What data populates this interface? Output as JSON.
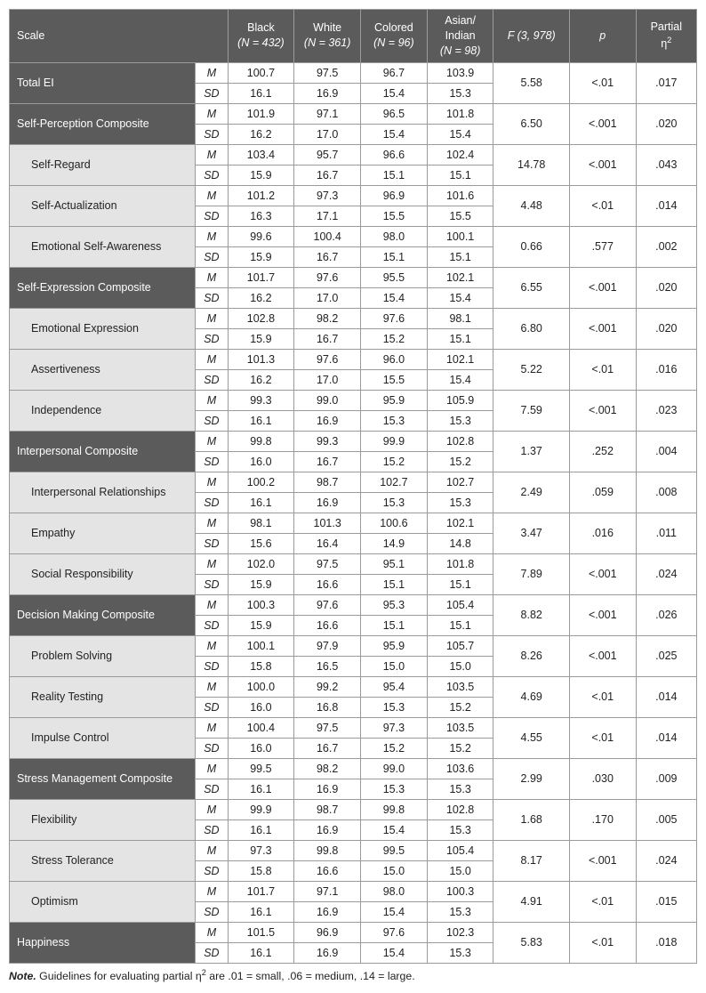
{
  "header": {
    "scale": "Scale",
    "black": "Black",
    "black_n": "(N = 432)",
    "white": "White",
    "white_n": "(N = 361)",
    "colored": "Colored",
    "colored_n": "(N = 96)",
    "asian": "Asian/\nIndian",
    "asian_n": "(N = 98)",
    "F": "F (3, 978)",
    "p": "p",
    "eta": "Partial η²"
  },
  "stat_labels": {
    "M": "M",
    "SD": "SD"
  },
  "rows": [
    {
      "type": "composite",
      "indent": false,
      "label": "Total EI",
      "M": [
        "100.7",
        "97.5",
        "96.7",
        "103.9"
      ],
      "SD": [
        "16.1",
        "16.9",
        "15.4",
        "15.3"
      ],
      "F": "5.58",
      "p": "<.01",
      "eta": ".017"
    },
    {
      "type": "composite",
      "indent": false,
      "label": "Self-Perception Composite",
      "M": [
        "101.9",
        "97.1",
        "96.5",
        "101.8"
      ],
      "SD": [
        "16.2",
        "17.0",
        "15.4",
        "15.4"
      ],
      "F": "6.50",
      "p": "<.001",
      "eta": ".020"
    },
    {
      "type": "sub",
      "indent": true,
      "label": "Self-Regard",
      "M": [
        "103.4",
        "95.7",
        "96.6",
        "102.4"
      ],
      "SD": [
        "15.9",
        "16.7",
        "15.1",
        "15.1"
      ],
      "F": "14.78",
      "p": "<.001",
      "eta": ".043"
    },
    {
      "type": "sub",
      "indent": true,
      "label": "Self-Actualization",
      "M": [
        "101.2",
        "97.3",
        "96.9",
        "101.6"
      ],
      "SD": [
        "16.3",
        "17.1",
        "15.5",
        "15.5"
      ],
      "F": "4.48",
      "p": "<.01",
      "eta": ".014"
    },
    {
      "type": "sub",
      "indent": true,
      "label": "Emotional Self-Awareness",
      "M": [
        "99.6",
        "100.4",
        "98.0",
        "100.1"
      ],
      "SD": [
        "15.9",
        "16.7",
        "15.1",
        "15.1"
      ],
      "F": "0.66",
      "p": ".577",
      "eta": ".002"
    },
    {
      "type": "composite",
      "indent": false,
      "label": "Self-Expression Composite",
      "M": [
        "101.7",
        "97.6",
        "95.5",
        "102.1"
      ],
      "SD": [
        "16.2",
        "17.0",
        "15.4",
        "15.4"
      ],
      "F": "6.55",
      "p": "<.001",
      "eta": ".020"
    },
    {
      "type": "sub",
      "indent": true,
      "label": "Emotional Expression",
      "M": [
        "102.8",
        "98.2",
        "97.6",
        "98.1"
      ],
      "SD": [
        "15.9",
        "16.7",
        "15.2",
        "15.1"
      ],
      "F": "6.80",
      "p": "<.001",
      "eta": ".020"
    },
    {
      "type": "sub",
      "indent": true,
      "label": "Assertiveness",
      "M": [
        "101.3",
        "97.6",
        "96.0",
        "102.1"
      ],
      "SD": [
        "16.2",
        "17.0",
        "15.5",
        "15.4"
      ],
      "F": "5.22",
      "p": "<.01",
      "eta": ".016"
    },
    {
      "type": "sub",
      "indent": true,
      "label": "Independence",
      "M": [
        "99.3",
        "99.0",
        "95.9",
        "105.9"
      ],
      "SD": [
        "16.1",
        "16.9",
        "15.3",
        "15.3"
      ],
      "F": "7.59",
      "p": "<.001",
      "eta": ".023"
    },
    {
      "type": "composite",
      "indent": false,
      "label": "Interpersonal Composite",
      "M": [
        "99.8",
        "99.3",
        "99.9",
        "102.8"
      ],
      "SD": [
        "16.0",
        "16.7",
        "15.2",
        "15.2"
      ],
      "F": "1.37",
      "p": ".252",
      "eta": ".004"
    },
    {
      "type": "sub",
      "indent": true,
      "label": "Interpersonal Relationships",
      "M": [
        "100.2",
        "98.7",
        "102.7",
        "102.7"
      ],
      "SD": [
        "16.1",
        "16.9",
        "15.3",
        "15.3"
      ],
      "F": "2.49",
      "p": ".059",
      "eta": ".008"
    },
    {
      "type": "sub",
      "indent": true,
      "label": "Empathy",
      "M": [
        "98.1",
        "101.3",
        "100.6",
        "102.1"
      ],
      "SD": [
        "15.6",
        "16.4",
        "14.9",
        "14.8"
      ],
      "F": "3.47",
      "p": ".016",
      "eta": ".011"
    },
    {
      "type": "sub",
      "indent": true,
      "label": "Social Responsibility",
      "M": [
        "102.0",
        "97.5",
        "95.1",
        "101.8"
      ],
      "SD": [
        "15.9",
        "16.6",
        "15.1",
        "15.1"
      ],
      "F": "7.89",
      "p": "<.001",
      "eta": ".024"
    },
    {
      "type": "composite",
      "indent": false,
      "label": "Decision Making Composite",
      "M": [
        "100.3",
        "97.6",
        "95.3",
        "105.4"
      ],
      "SD": [
        "15.9",
        "16.6",
        "15.1",
        "15.1"
      ],
      "F": "8.82",
      "p": "<.001",
      "eta": ".026"
    },
    {
      "type": "sub",
      "indent": true,
      "label": "Problem Solving",
      "M": [
        "100.1",
        "97.9",
        "95.9",
        "105.7"
      ],
      "SD": [
        "15.8",
        "16.5",
        "15.0",
        "15.0"
      ],
      "F": "8.26",
      "p": "<.001",
      "eta": ".025"
    },
    {
      "type": "sub",
      "indent": true,
      "label": "Reality Testing",
      "M": [
        "100.0",
        "99.2",
        "95.4",
        "103.5"
      ],
      "SD": [
        "16.0",
        "16.8",
        "15.3",
        "15.2"
      ],
      "F": "4.69",
      "p": "<.01",
      "eta": ".014"
    },
    {
      "type": "sub",
      "indent": true,
      "label": "Impulse Control",
      "M": [
        "100.4",
        "97.5",
        "97.3",
        "103.5"
      ],
      "SD": [
        "16.0",
        "16.7",
        "15.2",
        "15.2"
      ],
      "F": "4.55",
      "p": "<.01",
      "eta": ".014"
    },
    {
      "type": "composite",
      "indent": false,
      "label": "Stress Management Composite",
      "M": [
        "99.5",
        "98.2",
        "99.0",
        "103.6"
      ],
      "SD": [
        "16.1",
        "16.9",
        "15.3",
        "15.3"
      ],
      "F": "2.99",
      "p": ".030",
      "eta": ".009"
    },
    {
      "type": "sub",
      "indent": true,
      "label": "Flexibility",
      "M": [
        "99.9",
        "98.7",
        "99.8",
        "102.8"
      ],
      "SD": [
        "16.1",
        "16.9",
        "15.4",
        "15.3"
      ],
      "F": "1.68",
      "p": ".170",
      "eta": ".005"
    },
    {
      "type": "sub",
      "indent": true,
      "label": "Stress Tolerance",
      "M": [
        "97.3",
        "99.8",
        "99.5",
        "105.4"
      ],
      "SD": [
        "15.8",
        "16.6",
        "15.0",
        "15.0"
      ],
      "F": "8.17",
      "p": "<.001",
      "eta": ".024"
    },
    {
      "type": "sub",
      "indent": true,
      "label": "Optimism",
      "M": [
        "101.7",
        "97.1",
        "98.0",
        "100.3"
      ],
      "SD": [
        "16.1",
        "16.9",
        "15.4",
        "15.3"
      ],
      "F": "4.91",
      "p": "<.01",
      "eta": ".015"
    },
    {
      "type": "composite",
      "indent": false,
      "label": "Happiness",
      "M": [
        "101.5",
        "96.9",
        "97.6",
        "102.3"
      ],
      "SD": [
        "16.1",
        "16.9",
        "15.4",
        "15.3"
      ],
      "F": "5.83",
      "p": "<.01",
      "eta": ".018"
    }
  ],
  "note": {
    "label": "Note.",
    "text": " Guidelines for evaluating partial η² are .01 = small, .06 = medium, .14 = large."
  },
  "col_widths": {
    "scale": 196,
    "stat": 34,
    "group": 70,
    "F": 80,
    "p": 70,
    "eta": 64
  }
}
